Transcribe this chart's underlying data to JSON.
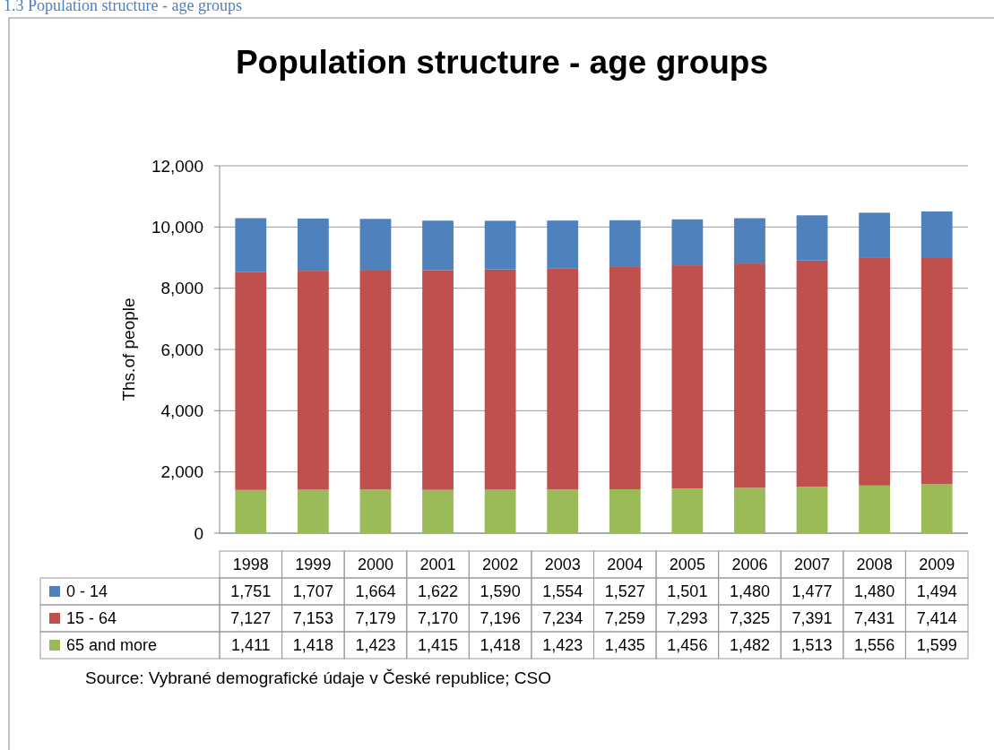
{
  "chart_data": {
    "type": "bar",
    "title": "Population structure - age groups",
    "ylabel": "Ths.of people",
    "stacked": true,
    "grid": "y",
    "legend": "bottom",
    "categories": [
      "1998",
      "1999",
      "2000",
      "2001",
      "2002",
      "2003",
      "2004",
      "2005",
      "2006",
      "2007",
      "2008",
      "2009"
    ],
    "series": [
      {
        "name": "65 and more",
        "color": "#9bbb59",
        "values": [
          1411,
          1418,
          1423,
          1415,
          1418,
          1423,
          1435,
          1456,
          1482,
          1513,
          1556,
          1599
        ],
        "value_labels": [
          "1,411",
          "1,418",
          "1,423",
          "1,415",
          "1,418",
          "1,423",
          "1,435",
          "1,456",
          "1,482",
          "1,513",
          "1,556",
          "1,599"
        ]
      },
      {
        "name": "15 - 64",
        "color": "#c0504d",
        "values": [
          7127,
          7153,
          7179,
          7170,
          7196,
          7234,
          7259,
          7293,
          7325,
          7391,
          7431,
          7414
        ],
        "value_labels": [
          "7,127",
          "7,153",
          "7,179",
          "7,170",
          "7,196",
          "7,234",
          "7,259",
          "7,293",
          "7,325",
          "7,391",
          "7,431",
          "7,414"
        ]
      },
      {
        "name": "0 - 14",
        "color": "#4f81bd",
        "values": [
          1751,
          1707,
          1664,
          1622,
          1590,
          1554,
          1527,
          1501,
          1480,
          1477,
          1480,
          1494
        ],
        "value_labels": [
          "1,751",
          "1,707",
          "1,664",
          "1,622",
          "1,590",
          "1,554",
          "1,527",
          "1,501",
          "1,480",
          "1,477",
          "1,480",
          "1,494"
        ]
      }
    ],
    "ylim": [
      0,
      12000
    ],
    "yticks": [
      0,
      {
        "value": 2000,
        "label": "2,000"
      },
      {
        "value": 4000,
        "label": "4,000"
      },
      {
        "value": 6000,
        "label": "6,000"
      },
      {
        "value": 8000,
        "label": "8,000"
      },
      {
        "value": 10000,
        "label": "10,000"
      },
      {
        "value": 12000,
        "label": "12,000"
      }
    ],
    "annotations": [
      "1.3 Population structure - age groups",
      "Source: Vybrané demografické údaje v České republice; CSO"
    ]
  }
}
